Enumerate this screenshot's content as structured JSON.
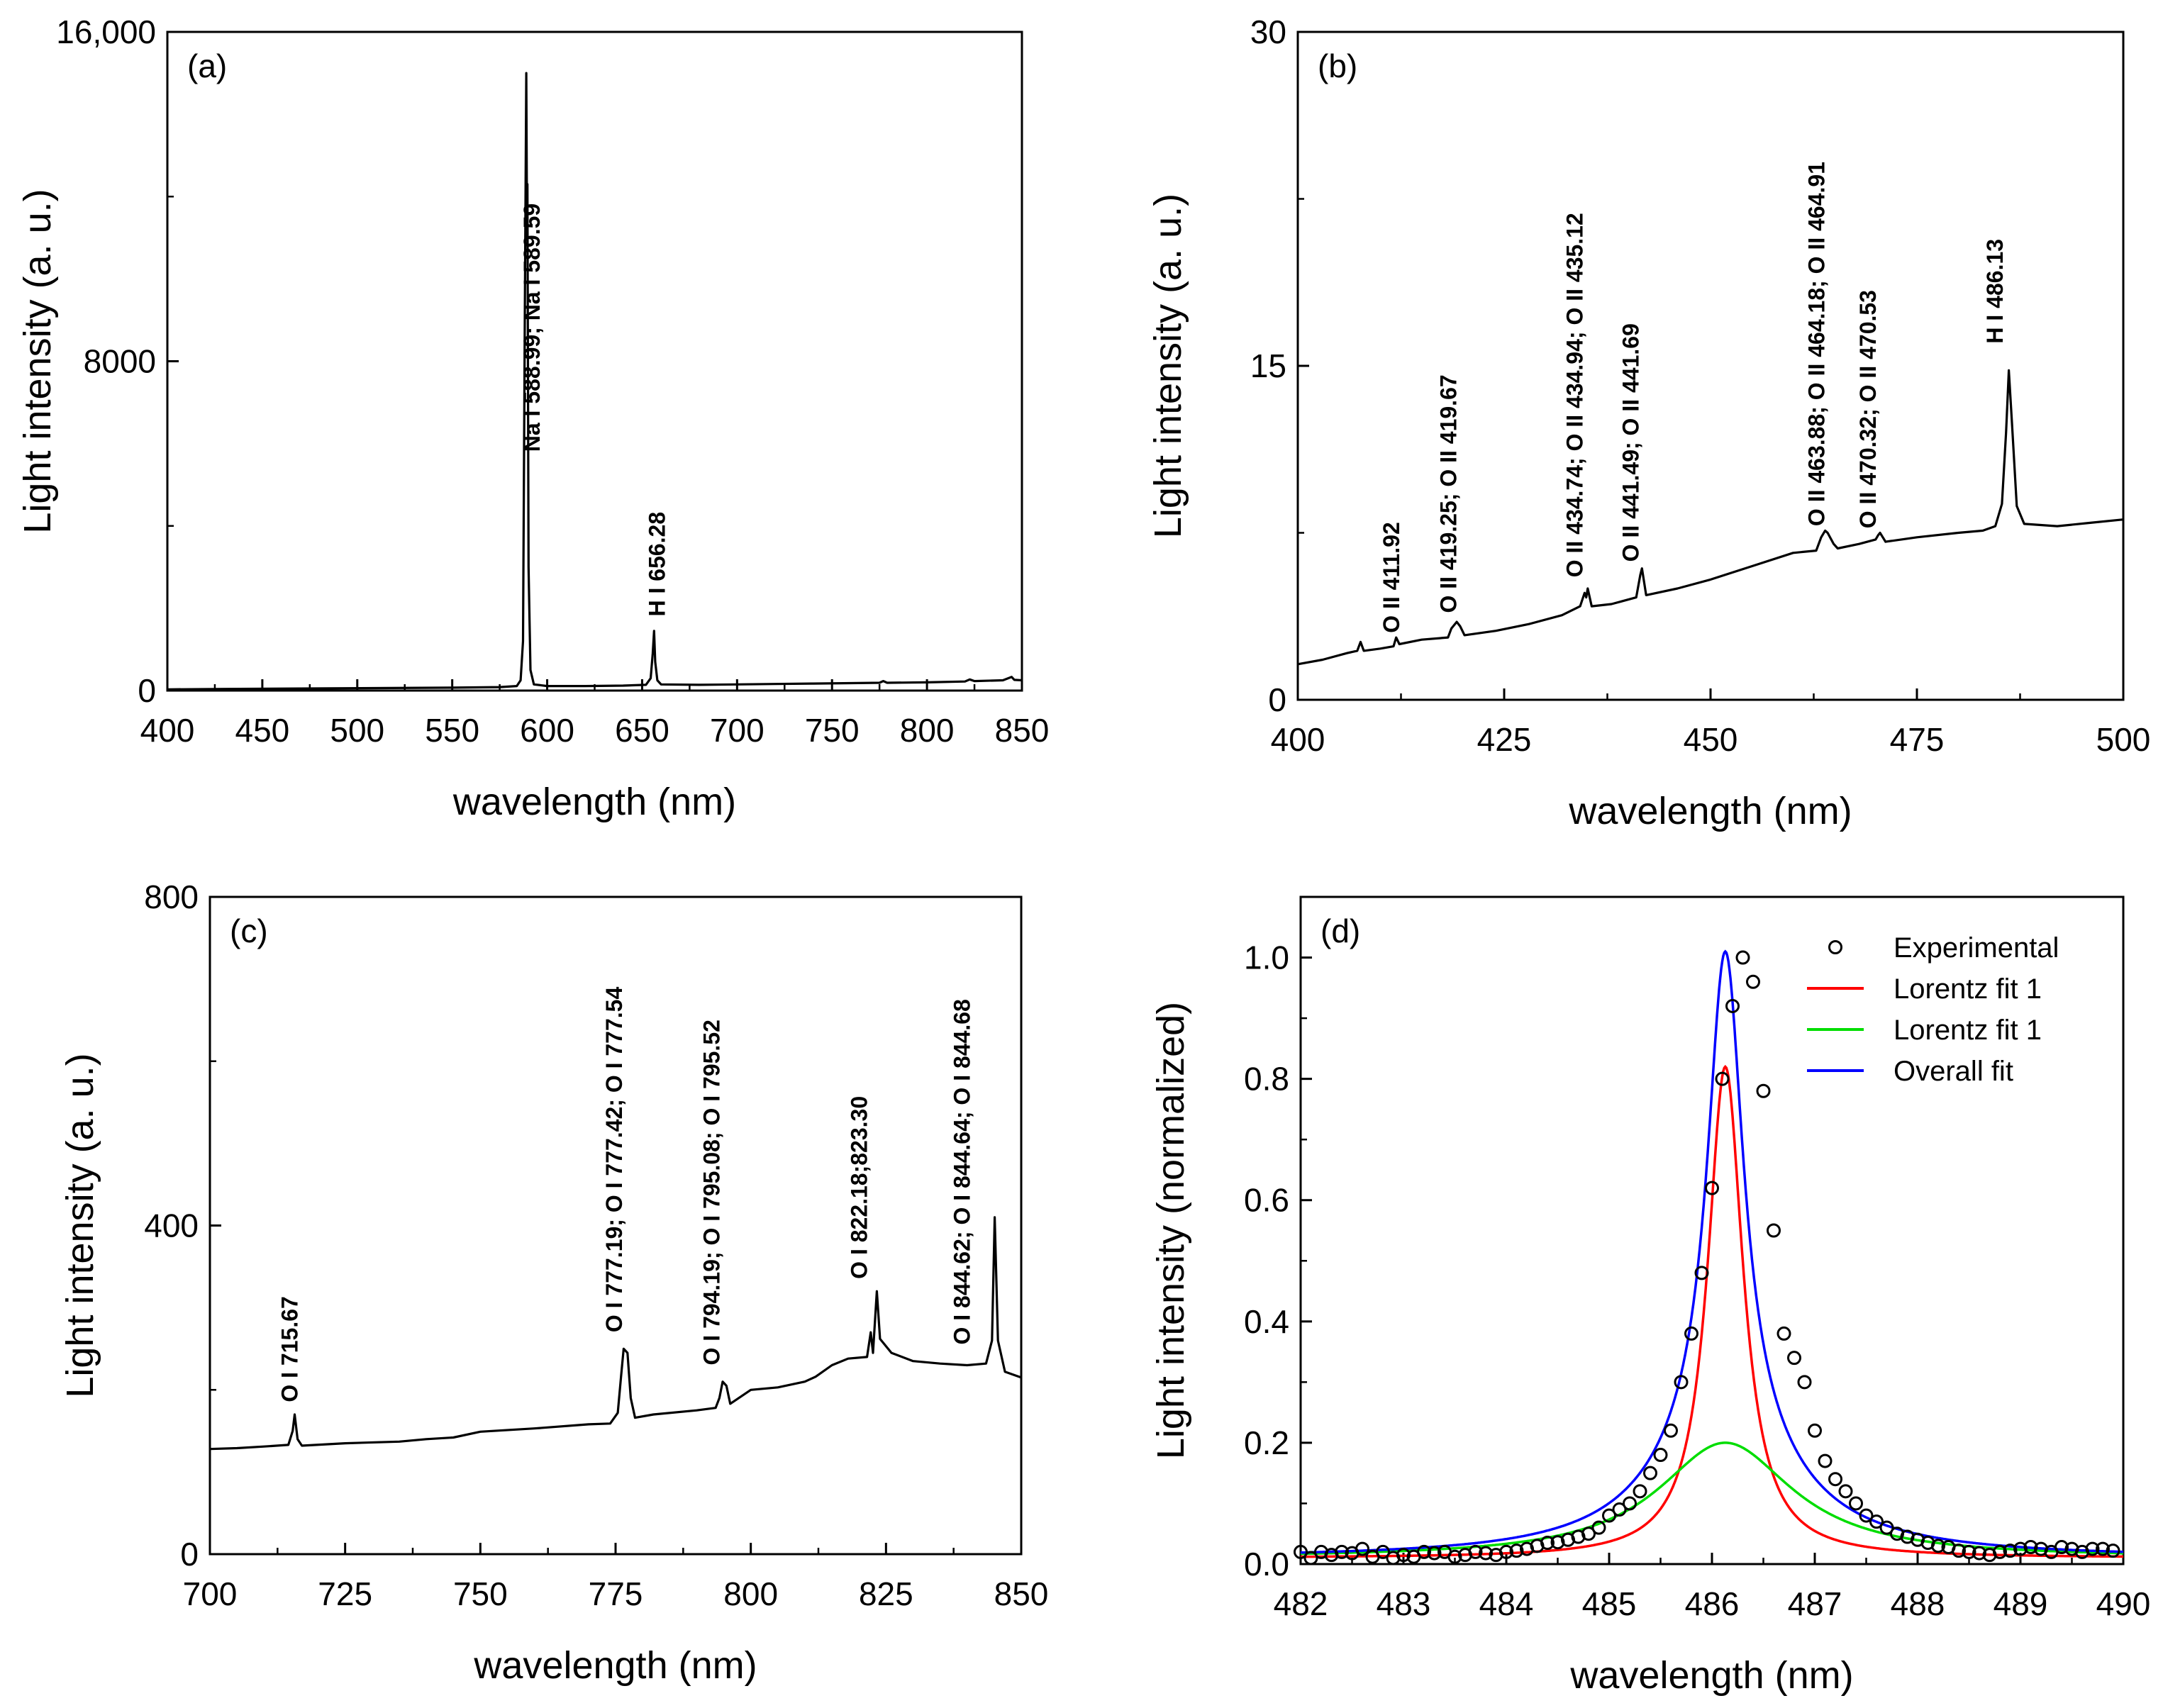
{
  "chart_data": [
    {
      "id": "a",
      "type": "line",
      "panel_label": "(a)",
      "xlabel": "wavelength (nm)",
      "ylabel": "Light intensity (a. u.)",
      "xlim": [
        400,
        850
      ],
      "ylim": [
        0,
        16000
      ],
      "xticks": [
        400,
        450,
        500,
        550,
        600,
        650,
        700,
        750,
        800,
        850
      ],
      "xtick_labels": [
        "400",
        "450",
        "500",
        "550",
        "600",
        "650",
        "700",
        "750",
        "800",
        "850"
      ],
      "yticks": [
        0,
        8000,
        16000
      ],
      "ytick_labels": [
        "0",
        "8000",
        "16,000"
      ],
      "yminor": [
        4000,
        12000
      ],
      "series": [
        {
          "name": "spectrum",
          "color": "#000000",
          "points": [
            [
              400,
              30
            ],
            [
              430,
              40
            ],
            [
              470,
              50
            ],
            [
              510,
              60
            ],
            [
              550,
              70
            ],
            [
              575,
              85
            ],
            [
              584,
              110
            ],
            [
              586,
              250
            ],
            [
              587.3,
              1200
            ],
            [
              588.2,
              9000
            ],
            [
              588.99,
              15000
            ],
            [
              589.3,
              12000
            ],
            [
              589.59,
              12300
            ],
            [
              590.2,
              3000
            ],
            [
              591.2,
              500
            ],
            [
              593,
              150
            ],
            [
              600,
              110
            ],
            [
              620,
              110
            ],
            [
              640,
              120
            ],
            [
              652,
              140
            ],
            [
              654.5,
              300
            ],
            [
              655.6,
              900
            ],
            [
              656.28,
              1450
            ],
            [
              656.9,
              700
            ],
            [
              658,
              250
            ],
            [
              660,
              150
            ],
            [
              680,
              140
            ],
            [
              700,
              150
            ],
            [
              720,
              160
            ],
            [
              740,
              170
            ],
            [
              760,
              180
            ],
            [
              775,
              190
            ],
            [
              777,
              230
            ],
            [
              779,
              190
            ],
            [
              800,
              200
            ],
            [
              820,
              220
            ],
            [
              822.5,
              270
            ],
            [
              825,
              230
            ],
            [
              840,
              250
            ],
            [
              844.6,
              330
            ],
            [
              846,
              260
            ],
            [
              850,
              250
            ]
          ]
        }
      ],
      "annotations": [
        {
          "text": "Na I 588.99; Na I 589.59",
          "x": 596,
          "y": 5800
        },
        {
          "text": "H I 656.28",
          "x": 662,
          "y": 1800
        }
      ]
    },
    {
      "id": "b",
      "type": "line",
      "panel_label": "(b)",
      "xlabel": "wavelength (nm)",
      "ylabel": "Light intensity (a. u.)",
      "xlim": [
        400,
        500
      ],
      "ylim": [
        0,
        30
      ],
      "xticks": [
        400,
        425,
        450,
        475,
        500
      ],
      "xtick_labels": [
        "400",
        "425",
        "450",
        "475",
        "500"
      ],
      "yticks": [
        0,
        15,
        30
      ],
      "ytick_labels": [
        "0",
        "15",
        "30"
      ],
      "yminor": [
        7.5,
        22.5
      ],
      "series": [
        {
          "name": "spectrum",
          "color": "#000000",
          "points": [
            [
              400,
              1.6
            ],
            [
              403,
              1.8
            ],
            [
              406,
              2.1
            ],
            [
              407.2,
              2.2
            ],
            [
              407.6,
              2.6
            ],
            [
              408,
              2.2
            ],
            [
              410,
              2.3
            ],
            [
              411.6,
              2.4
            ],
            [
              411.92,
              2.8
            ],
            [
              412.3,
              2.5
            ],
            [
              415,
              2.7
            ],
            [
              418.2,
              2.8
            ],
            [
              418.6,
              3.2
            ],
            [
              419.25,
              3.5
            ],
            [
              419.67,
              3.3
            ],
            [
              420.2,
              2.9
            ],
            [
              424,
              3.1
            ],
            [
              428,
              3.4
            ],
            [
              432,
              3.8
            ],
            [
              434.2,
              4.2
            ],
            [
              434.74,
              4.8
            ],
            [
              434.94,
              4.6
            ],
            [
              435.12,
              5.0
            ],
            [
              435.6,
              4.2
            ],
            [
              438,
              4.3
            ],
            [
              441,
              4.6
            ],
            [
              441.49,
              5.6
            ],
            [
              441.69,
              5.9
            ],
            [
              442.2,
              4.7
            ],
            [
              446,
              5.0
            ],
            [
              450,
              5.4
            ],
            [
              455,
              6.0
            ],
            [
              460,
              6.6
            ],
            [
              462.8,
              6.7
            ],
            [
              463.4,
              7.3
            ],
            [
              463.88,
              7.6
            ],
            [
              464.18,
              7.5
            ],
            [
              464.91,
              7.0
            ],
            [
              465.4,
              6.8
            ],
            [
              468,
              7.0
            ],
            [
              470.0,
              7.2
            ],
            [
              470.32,
              7.4
            ],
            [
              470.53,
              7.5
            ],
            [
              471.2,
              7.1
            ],
            [
              475,
              7.3
            ],
            [
              480,
              7.5
            ],
            [
              483,
              7.6
            ],
            [
              484.5,
              7.8
            ],
            [
              485.3,
              8.8
            ],
            [
              485.8,
              12.0
            ],
            [
              486.13,
              14.8
            ],
            [
              486.5,
              12.5
            ],
            [
              487.1,
              8.7
            ],
            [
              488,
              7.9
            ],
            [
              492,
              7.8
            ],
            [
              496,
              7.95
            ],
            [
              500,
              8.1
            ]
          ]
        }
      ],
      "annotations": [
        {
          "text": "O II 411.92",
          "x": 412.3,
          "y": 3.0
        },
        {
          "text": "O II 419.25; O II 419.67",
          "x": 419.2,
          "y": 3.9
        },
        {
          "text": "O II 434.74; O II 434.94; O II 435.12",
          "x": 434.5,
          "y": 5.5
        },
        {
          "text": "O II 441.49; O II 441.69",
          "x": 441.3,
          "y": 6.2
        },
        {
          "text": "O II 463.88; O II 464.18; O II 464.91",
          "x": 463.8,
          "y": 7.8
        },
        {
          "text": "O II 470.32; O II 470.53",
          "x": 470.0,
          "y": 7.7
        },
        {
          "text": "H I 486.13",
          "x": 485.4,
          "y": 16.0
        }
      ]
    },
    {
      "id": "c",
      "type": "line",
      "panel_label": "(c)",
      "xlabel": "wavelength (nm)",
      "ylabel": "Light intensity (a. u.)",
      "xlim": [
        700,
        850
      ],
      "ylim": [
        0,
        800
      ],
      "xticks": [
        700,
        725,
        750,
        775,
        800,
        825,
        850
      ],
      "xtick_labels": [
        "700",
        "725",
        "750",
        "775",
        "800",
        "825",
        "850"
      ],
      "yticks": [
        0,
        400,
        800
      ],
      "ytick_labels": [
        "0",
        "400",
        "800"
      ],
      "yminor": [
        200,
        600
      ],
      "series": [
        {
          "name": "spectrum",
          "color": "#000000",
          "points": [
            [
              700,
              128
            ],
            [
              705,
              129
            ],
            [
              710,
              131
            ],
            [
              714.5,
              133
            ],
            [
              715.3,
              150
            ],
            [
              715.67,
              170
            ],
            [
              716.2,
              140
            ],
            [
              717,
              132
            ],
            [
              725,
              135
            ],
            [
              735,
              137
            ],
            [
              740,
              140
            ],
            [
              745,
              142
            ],
            [
              750,
              149
            ],
            [
              760,
              153
            ],
            [
              770,
              158
            ],
            [
              774,
              159
            ],
            [
              775.4,
              172
            ],
            [
              776,
              215
            ],
            [
              776.5,
              250
            ],
            [
              777.2,
              245
            ],
            [
              777.8,
              190
            ],
            [
              778.6,
              166
            ],
            [
              782,
              170
            ],
            [
              790,
              175
            ],
            [
              793.5,
              178
            ],
            [
              794.2,
              190
            ],
            [
              794.8,
              210
            ],
            [
              795.5,
              205
            ],
            [
              796.2,
              183
            ],
            [
              800,
              200
            ],
            [
              805,
              203
            ],
            [
              810,
              210
            ],
            [
              812,
              216
            ],
            [
              815,
              230
            ],
            [
              818,
              238
            ],
            [
              821.5,
              240
            ],
            [
              822.18,
              270
            ],
            [
              822.6,
              245
            ],
            [
              823.3,
              320
            ],
            [
              823.9,
              262
            ],
            [
              826,
              245
            ],
            [
              830,
              235
            ],
            [
              835,
              232
            ],
            [
              840,
              230
            ],
            [
              843.5,
              232
            ],
            [
              844.6,
              260
            ],
            [
              845.1,
              410
            ],
            [
              845.7,
              260
            ],
            [
              847,
              222
            ],
            [
              850,
              215
            ]
          ]
        }
      ],
      "annotations": [
        {
          "text": "O I 715.67",
          "x": 716.2,
          "y": 185
        },
        {
          "text": "O I 777.19; O I 777.42; O I 777.54",
          "x": 776.2,
          "y": 270
        },
        {
          "text": "O I 794.19; O I 795.08; O I 795.52",
          "x": 794.2,
          "y": 230
        },
        {
          "text": "O I 822.18;823.30",
          "x": 821.5,
          "y": 335
        },
        {
          "text": "O I 844.62; O I 844.64; O I 844.68",
          "x": 840.5,
          "y": 255
        }
      ]
    },
    {
      "id": "d",
      "type": "scatter",
      "panel_label": "(d)",
      "xlabel": "wavelength (nm)",
      "ylabel": "Light intensity (normalized)",
      "xlim": [
        482,
        490
      ],
      "ylim": [
        0,
        1.1
      ],
      "xticks": [
        482,
        483,
        484,
        485,
        486,
        487,
        488,
        489,
        490
      ],
      "xtick_labels": [
        "482",
        "483",
        "484",
        "485",
        "486",
        "487",
        "488",
        "489",
        "490"
      ],
      "yticks": [
        0,
        0.2,
        0.4,
        0.6,
        0.8,
        1.0
      ],
      "ytick_labels": [
        "0.0",
        "0.2",
        "0.4",
        "0.6",
        "0.8",
        "1.0"
      ],
      "yminor": [
        0.1,
        0.3,
        0.5,
        0.7,
        0.9
      ],
      "legend": {
        "position": "top-right",
        "entries": [
          {
            "label": "Experimental",
            "kind": "marker",
            "color": "#000000"
          },
          {
            "label": "Lorentz fit 1",
            "kind": "line",
            "color": "#ff0000"
          },
          {
            "label": "Lorentz fit 1",
            "kind": "line",
            "color": "#00dd00"
          },
          {
            "label": "Overall fit",
            "kind": "line",
            "color": "#0000ff"
          }
        ]
      },
      "fits": [
        {
          "name": "Lorentz fit 1",
          "color": "#ff0000",
          "center": 486.13,
          "amplitude": 0.81,
          "fwhm": 0.42,
          "offset": 0.01
        },
        {
          "name": "Lorentz fit 1",
          "color": "#00dd00",
          "center": 486.13,
          "amplitude": 0.19,
          "fwhm": 1.6,
          "offset": 0.01
        },
        {
          "name": "Overall fit",
          "color": "#0000ff",
          "center": 486.13,
          "components": [
            [
              0.81,
              0.42
            ],
            [
              0.19,
              1.6
            ]
          ],
          "offset": 0.01
        }
      ],
      "experimental": {
        "name": "Experimental",
        "marker": "open-circle",
        "color": "#000000",
        "x": [
          482.0,
          482.1,
          482.2,
          482.3,
          482.4,
          482.5,
          482.6,
          482.7,
          482.8,
          482.9,
          483.0,
          483.1,
          483.2,
          483.3,
          483.4,
          483.5,
          483.6,
          483.7,
          483.8,
          483.9,
          484.0,
          484.1,
          484.2,
          484.3,
          484.4,
          484.5,
          484.6,
          484.7,
          484.8,
          484.9,
          485.0,
          485.1,
          485.2,
          485.3,
          485.4,
          485.5,
          485.6,
          485.7,
          485.8,
          485.9,
          486.0,
          486.1,
          486.2,
          486.3,
          486.4,
          486.5,
          486.6,
          486.7,
          486.8,
          486.9,
          487.0,
          487.1,
          487.2,
          487.3,
          487.4,
          487.5,
          487.6,
          487.7,
          487.8,
          487.9,
          488.0,
          488.1,
          488.2,
          488.3,
          488.4,
          488.5,
          488.6,
          488.7,
          488.8,
          488.9,
          489.0,
          489.1,
          489.2,
          489.3,
          489.4,
          489.5,
          489.6,
          489.7,
          489.8,
          489.9
        ],
        "y": [
          0.02,
          0.01,
          0.02,
          0.015,
          0.02,
          0.018,
          0.025,
          0.012,
          0.02,
          0.01,
          0.015,
          0.012,
          0.02,
          0.018,
          0.02,
          0.012,
          0.015,
          0.02,
          0.018,
          0.015,
          0.02,
          0.022,
          0.025,
          0.03,
          0.035,
          0.036,
          0.04,
          0.045,
          0.05,
          0.06,
          0.08,
          0.09,
          0.1,
          0.12,
          0.15,
          0.18,
          0.22,
          0.3,
          0.38,
          0.48,
          0.62,
          0.8,
          0.92,
          1.0,
          0.96,
          0.78,
          0.55,
          0.38,
          0.34,
          0.3,
          0.22,
          0.17,
          0.14,
          0.12,
          0.1,
          0.08,
          0.07,
          0.06,
          0.05,
          0.045,
          0.04,
          0.035,
          0.03,
          0.028,
          0.022,
          0.02,
          0.018,
          0.015,
          0.02,
          0.022,
          0.025,
          0.028,
          0.025,
          0.02,
          0.028,
          0.025,
          0.02,
          0.025,
          0.025,
          0.022
        ]
      }
    }
  ]
}
